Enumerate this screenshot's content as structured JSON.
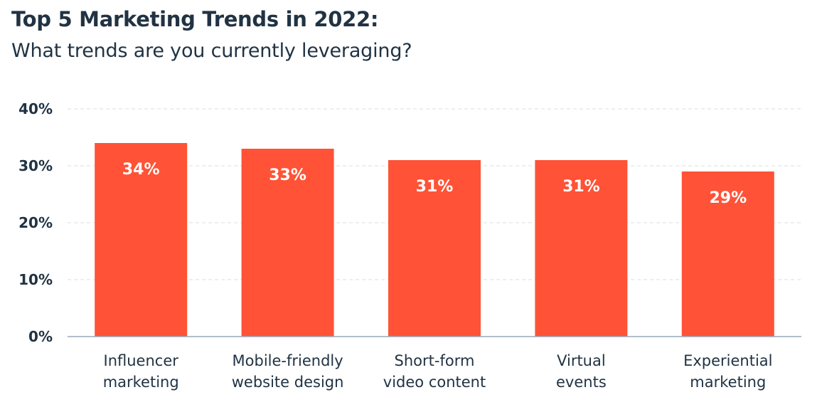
{
  "chart_data": {
    "type": "bar",
    "title": "Top 5 Marketing Trends in 2022:",
    "subtitle": "What trends are you currently leveraging?",
    "categories": [
      [
        "Influencer",
        "marketing"
      ],
      [
        "Mobile-friendly",
        "website design"
      ],
      [
        "Short-form",
        "video content"
      ],
      [
        "Virtual",
        "events"
      ],
      [
        "Experiential",
        "marketing"
      ]
    ],
    "values": [
      34,
      33,
      31,
      31,
      29
    ],
    "value_labels": [
      "34%",
      "33%",
      "31%",
      "31%",
      "29%"
    ],
    "ylim": [
      0,
      40
    ],
    "yticks": [
      0,
      10,
      20,
      30,
      40
    ],
    "ytick_labels": [
      "0%",
      "10%",
      "20%",
      "30%",
      "40%"
    ],
    "xlabel": "",
    "ylabel": "",
    "grid": true,
    "colors": {
      "bar": "#ff5236",
      "grid": "#dfe3eb",
      "axis": "#99a9b9",
      "text": "#213343"
    }
  }
}
